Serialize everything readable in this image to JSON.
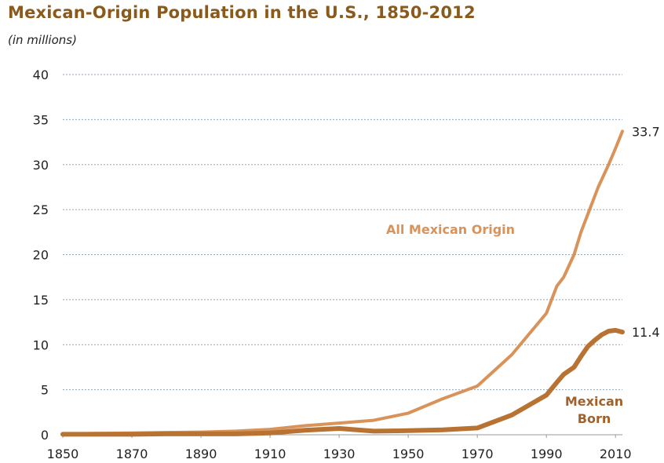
{
  "chart_data": {
    "type": "line",
    "title": "Mexican-Origin Population in the U.S., 1850-2012",
    "subtitle": "(in millions)",
    "xlabel": "",
    "ylabel": "",
    "xlim": [
      1850,
      2012
    ],
    "ylim": [
      0,
      40
    ],
    "x_ticks": [
      "1850",
      "1870",
      "1890",
      "1910",
      "1930",
      "1950",
      "1970",
      "1990",
      "2010"
    ],
    "y_ticks": [
      "0",
      "5",
      "10",
      "15",
      "20",
      "25",
      "30",
      "35",
      "40"
    ],
    "grid": true,
    "series": [
      {
        "name": "All Mexican Origin",
        "color": "#d9935a",
        "end_label": "33.7",
        "x": [
          1850,
          1860,
          1870,
          1880,
          1890,
          1900,
          1910,
          1920,
          1930,
          1940,
          1950,
          1960,
          1970,
          1980,
          1990,
          1993,
          1995,
          1998,
          2000,
          2003,
          2005,
          2008,
          2010,
          2012
        ],
        "y": [
          0.1,
          0.15,
          0.2,
          0.25,
          0.3,
          0.4,
          0.6,
          1.0,
          1.3,
          1.6,
          2.4,
          4.0,
          5.4,
          8.9,
          13.5,
          16.5,
          17.5,
          20.0,
          22.5,
          25.5,
          27.5,
          30.0,
          31.8,
          33.7
        ]
      },
      {
        "name": "Mexican Born",
        "color": "#b87333",
        "end_label": "11.4",
        "x": [
          1850,
          1860,
          1870,
          1880,
          1890,
          1900,
          1910,
          1920,
          1930,
          1940,
          1950,
          1960,
          1970,
          1980,
          1990,
          1993,
          1995,
          1998,
          2000,
          2002,
          2004,
          2006,
          2008,
          2010,
          2012
        ],
        "y": [
          0.05,
          0.05,
          0.05,
          0.1,
          0.1,
          0.1,
          0.2,
          0.5,
          0.7,
          0.4,
          0.45,
          0.55,
          0.75,
          2.2,
          4.4,
          5.8,
          6.7,
          7.5,
          8.7,
          9.8,
          10.5,
          11.1,
          11.5,
          11.6,
          11.4
        ]
      }
    ],
    "series_labels": [
      {
        "lines": [
          "All Mexican Origin"
        ],
        "color": "#d9935a"
      },
      {
        "lines": [
          "Mexican",
          "Born"
        ],
        "color": "#a0622d"
      }
    ]
  }
}
